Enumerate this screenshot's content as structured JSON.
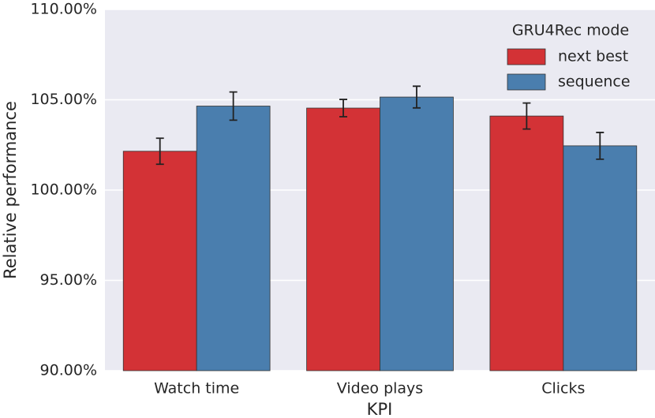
{
  "chart_data": {
    "type": "bar",
    "categories": [
      "Watch time",
      "Video plays",
      "Clicks"
    ],
    "series": [
      {
        "name": "next best",
        "color": "#d33236",
        "values": [
          102.15,
          104.54,
          104.1
        ],
        "errors": [
          0.72,
          0.48,
          0.72
        ]
      },
      {
        "name": "sequence",
        "color": "#4a7eae",
        "values": [
          104.65,
          105.15,
          102.45
        ],
        "errors": [
          0.78,
          0.6,
          0.74
        ]
      }
    ],
    "xlabel": "KPI",
    "ylabel": "Relative performance",
    "legend_title": "GRU4Rec mode",
    "legend_position": "upper right",
    "ylim": [
      90,
      110
    ],
    "yticks": [
      {
        "value": 90,
        "label": "90.00%"
      },
      {
        "value": 95,
        "label": "95.00%"
      },
      {
        "value": 100,
        "label": "100.00%"
      },
      {
        "value": 105,
        "label": "105.00%"
      },
      {
        "value": 110,
        "label": "110.00%"
      }
    ],
    "grid": true
  }
}
